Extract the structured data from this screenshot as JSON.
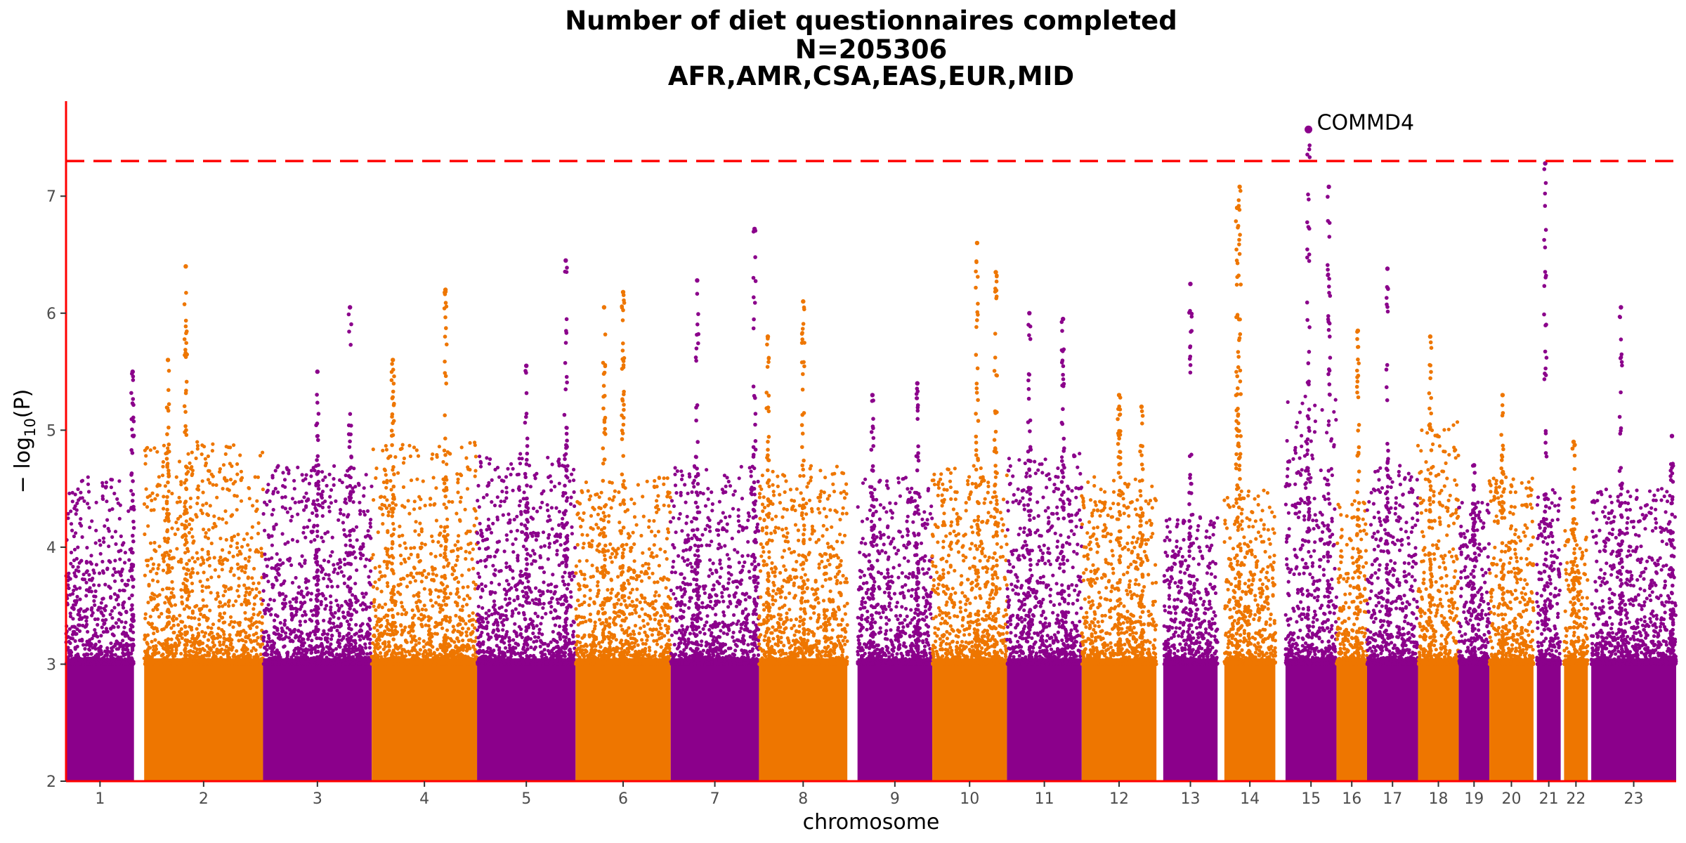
{
  "chart_data": {
    "type": "scatter",
    "subtype": "manhattan",
    "title_lines": [
      "Number of diet questionnaires completed",
      "N=205306",
      "AFR,AMR,CSA,EAS,EUR,MID"
    ],
    "xlabel": "chromosome",
    "ylabel_main": "− log",
    "ylabel_sub": "10",
    "ylabel_tail": "(P)",
    "ylim": [
      2,
      7.8
    ],
    "yticks": [
      2,
      3,
      4,
      5,
      6,
      7
    ],
    "significance_threshold": 7.3,
    "grid": false,
    "colors": {
      "odd": "#8b008b",
      "even": "#ee7600",
      "threshold": "#ff0000",
      "axis": "#ff0000"
    },
    "chromosomes": [
      {
        "label": "1",
        "start": 0,
        "end": 1.0,
        "peaks": [
          [
            0.98,
            5.5
          ]
        ],
        "bg": 4.6
      },
      {
        "label": "2",
        "start": 1.15,
        "end": 2.9,
        "peaks": [
          [
            0.35,
            6.4
          ],
          [
            0.2,
            5.6
          ]
        ],
        "bg": 4.9
      },
      {
        "label": "3",
        "start": 2.9,
        "end": 4.5,
        "peaks": [
          [
            0.8,
            6.05
          ],
          [
            0.5,
            5.5
          ]
        ],
        "bg": 4.7
      },
      {
        "label": "4",
        "start": 4.5,
        "end": 6.05,
        "peaks": [
          [
            0.7,
            6.2
          ],
          [
            0.2,
            5.6
          ]
        ],
        "bg": 4.9
      },
      {
        "label": "5",
        "start": 6.05,
        "end": 7.5,
        "peaks": [
          [
            0.9,
            6.45
          ],
          [
            0.5,
            5.55
          ]
        ],
        "bg": 4.8
      },
      {
        "label": "6",
        "start": 7.5,
        "end": 8.9,
        "peaks": [
          [
            0.5,
            6.18
          ],
          [
            0.3,
            6.05
          ]
        ],
        "bg": 4.6
      },
      {
        "label": "7",
        "start": 8.9,
        "end": 10.2,
        "peaks": [
          [
            0.95,
            6.72
          ],
          [
            0.3,
            6.28
          ]
        ],
        "bg": 4.7
      },
      {
        "label": "8",
        "start": 10.2,
        "end": 11.5,
        "peaks": [
          [
            0.5,
            6.1
          ],
          [
            0.1,
            5.8
          ]
        ],
        "bg": 4.7
      },
      {
        "label": "9",
        "start": 11.65,
        "end": 12.75,
        "peaks": [
          [
            0.2,
            5.3
          ],
          [
            0.8,
            5.4
          ]
        ],
        "bg": 4.6
      },
      {
        "label": "10",
        "start": 12.75,
        "end": 13.85,
        "peaks": [
          [
            0.6,
            6.6
          ],
          [
            0.85,
            6.35
          ]
        ],
        "bg": 4.7
      },
      {
        "label": "11",
        "start": 13.85,
        "end": 14.95,
        "peaks": [
          [
            0.3,
            6.0
          ],
          [
            0.75,
            5.95
          ]
        ],
        "bg": 4.8
      },
      {
        "label": "12",
        "start": 14.95,
        "end": 16.05,
        "peaks": [
          [
            0.5,
            5.3
          ],
          [
            0.8,
            5.2
          ]
        ],
        "bg": 4.6
      },
      {
        "label": "13",
        "start": 16.15,
        "end": 16.95,
        "peaks": [
          [
            0.5,
            6.25
          ]
        ],
        "bg": 4.3
      },
      {
        "label": "14",
        "start": 17.05,
        "end": 17.8,
        "peaks": [
          [
            0.3,
            7.08
          ],
          [
            0.25,
            6.9
          ]
        ],
        "bg": 4.5
      },
      {
        "label": "15",
        "start": 17.95,
        "end": 18.7,
        "peaks": [
          [
            0.45,
            7.57
          ],
          [
            0.85,
            7.08
          ]
        ],
        "bg": 5.3
      },
      {
        "label": "16",
        "start": 18.7,
        "end": 19.15,
        "peaks": [
          [
            0.7,
            5.85
          ]
        ],
        "bg": 4.4
      },
      {
        "label": "17",
        "start": 19.15,
        "end": 19.9,
        "peaks": [
          [
            0.4,
            6.38
          ]
        ],
        "bg": 4.7
      },
      {
        "label": "18",
        "start": 19.9,
        "end": 20.5,
        "peaks": [
          [
            0.3,
            5.8
          ]
        ],
        "bg": 5.1
      },
      {
        "label": "19",
        "start": 20.5,
        "end": 20.95,
        "peaks": [
          [
            0.5,
            4.7
          ]
        ],
        "bg": 4.4
      },
      {
        "label": "20",
        "start": 20.95,
        "end": 21.6,
        "peaks": [
          [
            0.3,
            5.3
          ]
        ],
        "bg": 4.6
      },
      {
        "label": "21",
        "start": 21.65,
        "end": 22.0,
        "peaks": [
          [
            0.35,
            7.28
          ]
        ],
        "bg": 4.5
      },
      {
        "label": "22",
        "start": 22.05,
        "end": 22.4,
        "peaks": [
          [
            0.4,
            4.9
          ]
        ],
        "bg": 4.2
      },
      {
        "label": "23",
        "start": 22.45,
        "end": 23.7,
        "peaks": [
          [
            0.35,
            6.05
          ],
          [
            0.95,
            4.95
          ]
        ],
        "bg": 4.5
      }
    ],
    "annotations": [
      {
        "label": "COMMD4",
        "chromosome": "15",
        "pos": 0.45,
        "y": 7.57
      }
    ]
  }
}
